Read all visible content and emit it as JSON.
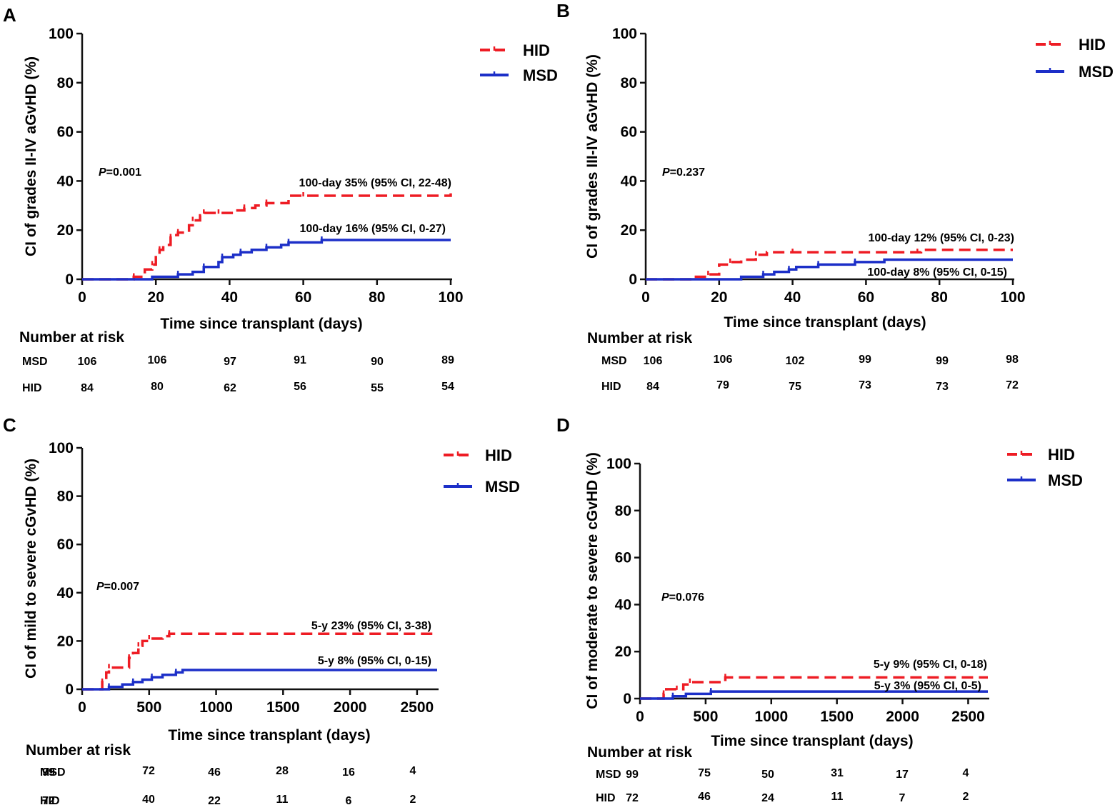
{
  "colors": {
    "hid": "#ee1c24",
    "msd": "#1c2fc8",
    "axis": "#111111"
  },
  "risk_table": {
    "label": "Number at risk"
  },
  "chart_data": [
    {
      "panel": "A",
      "type": "line",
      "ylabel": "CI of grades II-IV aGvHD (%)",
      "xlabel": "Time since transplant (days)",
      "xlim": [
        0,
        100
      ],
      "ylim": [
        0,
        100
      ],
      "xticks": [
        0,
        20,
        40,
        60,
        80,
        100
      ],
      "yticks": [
        0,
        20,
        40,
        60,
        80,
        100
      ],
      "p_value": "=0.001",
      "legend": [
        "HID",
        "MSD"
      ],
      "series": [
        {
          "name": "HID",
          "x": [
            0,
            10,
            14,
            17,
            19,
            20,
            21,
            22,
            24,
            25,
            26,
            29,
            30,
            32,
            33,
            35,
            37,
            41,
            44,
            47,
            50,
            56,
            60,
            100
          ],
          "y": [
            0,
            0,
            1,
            4,
            6,
            10,
            12,
            14,
            17,
            18,
            19,
            22,
            24,
            26,
            27,
            27,
            27,
            28,
            29,
            30,
            31,
            34,
            34,
            35
          ]
        },
        {
          "name": "MSD",
          "x": [
            0,
            19,
            26,
            30,
            33,
            37,
            38,
            41,
            43,
            46,
            50,
            54,
            56,
            60,
            65,
            100
          ],
          "y": [
            0,
            1,
            2,
            3,
            5,
            7,
            9,
            10,
            11,
            12,
            13,
            14,
            15,
            15,
            16,
            16
          ]
        }
      ],
      "annotations": [
        {
          "text": "100-day 35% (95% CI, 22-48)"
        },
        {
          "text": "100-day 16% (95% CI, 0-27)"
        }
      ],
      "risk_rows": [
        {
          "group": "MSD",
          "counts": [
            "106",
            "106",
            "97",
            "91",
            "90",
            "89"
          ]
        },
        {
          "group": "HID",
          "counts": [
            "84",
            "80",
            "62",
            "56",
            "55",
            "54"
          ]
        }
      ]
    },
    {
      "panel": "B",
      "type": "line",
      "ylabel": "CI of grades III-IV aGvHD (%)",
      "xlabel": "Time since transplant (days)",
      "xlim": [
        0,
        100
      ],
      "ylim": [
        0,
        100
      ],
      "xticks": [
        0,
        20,
        40,
        60,
        80,
        100
      ],
      "yticks": [
        0,
        20,
        40,
        60,
        80,
        100
      ],
      "p_value": "=0.237",
      "legend": [
        "HID",
        "MSD"
      ],
      "series": [
        {
          "name": "HID",
          "x": [
            0,
            13,
            17,
            20,
            23,
            26,
            30,
            33,
            40,
            60,
            74,
            75,
            100
          ],
          "y": [
            0,
            1,
            2,
            6,
            7,
            8,
            10,
            11,
            11,
            11,
            11,
            12,
            12
          ]
        },
        {
          "name": "MSD",
          "x": [
            0,
            26,
            32,
            35,
            39,
            41,
            47,
            51,
            57,
            65,
            100
          ],
          "y": [
            0,
            1,
            2,
            3,
            4,
            5,
            6,
            6,
            7,
            8,
            8
          ]
        }
      ],
      "annotations": [
        {
          "text": "100-day 12% (95% CI, 0-23)"
        },
        {
          "text": "100-day 8% (95% CI, 0-15)"
        }
      ],
      "risk_rows": [
        {
          "group": "MSD",
          "counts": [
            "106",
            "106",
            "102",
            "99",
            "99",
            "98"
          ]
        },
        {
          "group": "HID",
          "counts": [
            "84",
            "79",
            "75",
            "73",
            "73",
            "72"
          ]
        }
      ]
    },
    {
      "panel": "C",
      "type": "line",
      "ylabel": "CI of mild to severe cGvHD (%)",
      "xlabel": "Time since transplant (days)",
      "xlim": [
        0,
        2650
      ],
      "ylim": [
        0,
        100
      ],
      "xticks": [
        0,
        500,
        1000,
        1500,
        2000,
        2500
      ],
      "yticks": [
        0,
        20,
        40,
        60,
        80,
        100
      ],
      "p_value": "=0.007",
      "legend": [
        "HID",
        "MSD"
      ],
      "series": [
        {
          "name": "HID",
          "x": [
            0,
            100,
            150,
            180,
            200,
            280,
            350,
            380,
            420,
            450,
            500,
            600,
            650,
            2650
          ],
          "y": [
            0,
            0,
            3,
            7,
            9,
            9,
            13,
            15,
            18,
            20,
            21,
            22,
            23,
            23
          ]
        },
        {
          "name": "MSD",
          "x": [
            0,
            100,
            200,
            300,
            380,
            450,
            520,
            600,
            700,
            750,
            2650
          ],
          "y": [
            0,
            0,
            1,
            2,
            3,
            4,
            5,
            6,
            7,
            8,
            8
          ]
        }
      ],
      "annotations": [
        {
          "text": "5-y 23% (95% CI, 3-38)"
        },
        {
          "text": "5-y 8% (95% CI, 0-15)"
        }
      ],
      "risk_rows": [
        {
          "group": "MSD",
          "counts": [
            "99",
            "72",
            "46",
            "28",
            "16",
            "4"
          ]
        },
        {
          "group": "HID",
          "counts": [
            "72",
            "40",
            "22",
            "11",
            "6",
            "2"
          ]
        }
      ]
    },
    {
      "panel": "D",
      "type": "line",
      "ylabel": "CI of moderate to severe cGvHD (%)",
      "xlabel": "Time since transplant (days)",
      "xlim": [
        0,
        2650
      ],
      "ylim": [
        0,
        100
      ],
      "xticks": [
        0,
        500,
        1000,
        1500,
        2000,
        2500
      ],
      "yticks": [
        0,
        20,
        40,
        60,
        80,
        100
      ],
      "p_value": "=0.076",
      "legend": [
        "HID",
        "MSD"
      ],
      "series": [
        {
          "name": "HID",
          "x": [
            0,
            110,
            180,
            200,
            280,
            330,
            380,
            450,
            650,
            2650
          ],
          "y": [
            0,
            0,
            2,
            4,
            4,
            6,
            7,
            7,
            9,
            9
          ]
        },
        {
          "name": "MSD",
          "x": [
            0,
            150,
            250,
            350,
            540,
            2650
          ],
          "y": [
            0,
            0,
            1,
            2,
            3,
            3
          ]
        }
      ],
      "annotations": [
        {
          "text": "5-y 9% (95% CI, 0-18)"
        },
        {
          "text": "5-y 3% (95% CI, 0-5)"
        }
      ],
      "risk_rows": [
        {
          "group": "MSD",
          "counts": [
            "99",
            "75",
            "50",
            "31",
            "17",
            "4"
          ]
        },
        {
          "group": "HID",
          "counts": [
            "72",
            "46",
            "24",
            "11",
            "7",
            "2"
          ]
        }
      ]
    }
  ]
}
